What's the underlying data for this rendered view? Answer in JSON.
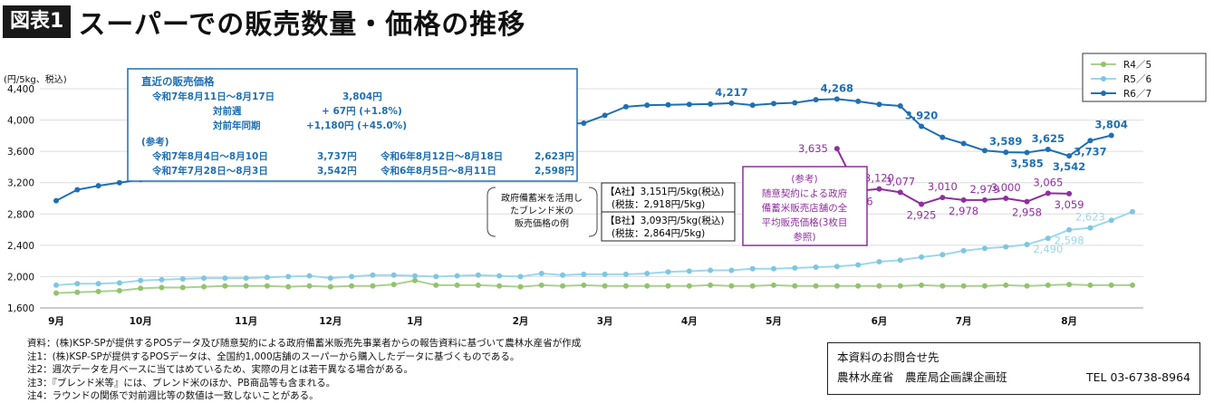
{
  "title": {
    "badge": "図表1",
    "text": "スーパーでの販売数量・価格の推移"
  },
  "chart_data": {
    "type": "line",
    "unit_label": "(円/5kg、税込)",
    "ylim": [
      1600,
      4400
    ],
    "yticks": [
      1600,
      2000,
      2400,
      2800,
      3200,
      3600,
      4000,
      4400
    ],
    "ytick_labels": [
      "1,600",
      "2,000",
      "2,400",
      "2,800",
      "3,200",
      "3,600",
      "4,000",
      "4,400"
    ],
    "x_count": 52,
    "x_month_labels": [
      {
        "label": "9月",
        "week": 0
      },
      {
        "label": "10月",
        "week": 4
      },
      {
        "label": "11月",
        "week": 9
      },
      {
        "label": "12月",
        "week": 13
      },
      {
        "label": "1月",
        "week": 17
      },
      {
        "label": "2月",
        "week": 22
      },
      {
        "label": "3月",
        "week": 26
      },
      {
        "label": "4月",
        "week": 30
      },
      {
        "label": "5月",
        "week": 34
      },
      {
        "label": "6月",
        "week": 39
      },
      {
        "label": "7月",
        "week": 43
      },
      {
        "label": "8月",
        "week": 48
      }
    ],
    "legend": {
      "position": "top-right",
      "entries": [
        "R4／5",
        "R5／6",
        "R6／7"
      ]
    },
    "series": [
      {
        "name": "R4／5",
        "color": "#a9d18e",
        "marker": "#92c36c",
        "values": [
          1790,
          1800,
          1810,
          1820,
          1850,
          1860,
          1860,
          1870,
          1880,
          1880,
          1880,
          1870,
          1880,
          1870,
          1880,
          1880,
          1900,
          1950,
          1890,
          1890,
          1890,
          1880,
          1870,
          1890,
          1880,
          1890,
          1880,
          1880,
          1880,
          1880,
          1880,
          1890,
          1880,
          1880,
          1890,
          1880,
          1880,
          1880,
          1880,
          1880,
          1880,
          1890,
          1880,
          1880,
          1880,
          1890,
          1880,
          1890,
          1900,
          1890,
          1890,
          1890
        ]
      },
      {
        "name": "R5／6",
        "color": "#9dd7ec",
        "marker": "#7ec6e2",
        "values": [
          1890,
          1910,
          1910,
          1920,
          1950,
          1960,
          1970,
          1980,
          1980,
          1980,
          1990,
          2000,
          2010,
          1980,
          2000,
          2020,
          2020,
          2010,
          2000,
          2010,
          2020,
          2010,
          2000,
          2040,
          2020,
          2030,
          2030,
          2030,
          2040,
          2060,
          2070,
          2080,
          2080,
          2100,
          2100,
          2110,
          2120,
          2130,
          2150,
          2190,
          2210,
          2250,
          2280,
          2330,
          2360,
          2380,
          2410,
          2490,
          2598,
          2623,
          2720,
          2830
        ]
      },
      {
        "name": "R6／7",
        "color": "#1f6fb3",
        "marker": "#1f6fb3",
        "values": [
          2970,
          3110,
          3160,
          3200,
          3240,
          3300,
          3350,
          3400,
          3450,
          3500,
          3550,
          3600,
          3650,
          3700,
          3750,
          3800,
          3830,
          3860,
          3880,
          3900,
          3910,
          3920,
          3930,
          3940,
          3950,
          3960,
          4060,
          4170,
          4190,
          4195,
          4200,
          4205,
          4217,
          4190,
          4210,
          4220,
          4260,
          4268,
          4240,
          4200,
          4180,
          3920,
          3780,
          3700,
          3610,
          3589,
          3585,
          3625,
          3542,
          3737,
          3804,
          null
        ]
      },
      {
        "name": "",
        "color": "#8e2f9e",
        "marker": "#8e2f9e",
        "start_index": 37,
        "values": [
          3635,
          3096,
          3120,
          3077,
          2925,
          3010,
          2978,
          2979,
          3000,
          2958,
          3065,
          3059
        ]
      }
    ],
    "data_labels": [
      {
        "series": 2,
        "index": 32,
        "text": "4,217",
        "pos": "above"
      },
      {
        "series": 2,
        "index": 37,
        "text": "4,268",
        "pos": "above"
      },
      {
        "series": 2,
        "index": 41,
        "text": "3,920",
        "pos": "above"
      },
      {
        "series": 2,
        "index": 45,
        "text": "3,589",
        "pos": "above"
      },
      {
        "series": 2,
        "index": 46,
        "text": "3,585",
        "pos": "below"
      },
      {
        "series": 2,
        "index": 47,
        "text": "3,625",
        "pos": "above"
      },
      {
        "series": 2,
        "index": 48,
        "text": "3,542",
        "pos": "below"
      },
      {
        "series": 2,
        "index": 49,
        "text": "3,737",
        "pos": "below"
      },
      {
        "series": 2,
        "index": 50,
        "text": "3,804",
        "pos": "above"
      },
      {
        "series": 3,
        "index": 0,
        "text": "3,635",
        "pos": "left"
      },
      {
        "series": 3,
        "index": 1,
        "text": "3,096",
        "pos": "below"
      },
      {
        "series": 3,
        "index": 2,
        "text": "3,120",
        "pos": "above"
      },
      {
        "series": 3,
        "index": 3,
        "text": "3,077",
        "pos": "above"
      },
      {
        "series": 3,
        "index": 4,
        "text": "2,925",
        "pos": "below"
      },
      {
        "series": 3,
        "index": 5,
        "text": "3,010",
        "pos": "above"
      },
      {
        "series": 3,
        "index": 6,
        "text": "2,978",
        "pos": "below"
      },
      {
        "series": 3,
        "index": 7,
        "text": "2,979",
        "pos": "above"
      },
      {
        "series": 3,
        "index": 8,
        "text": "3,000",
        "pos": "above"
      },
      {
        "series": 3,
        "index": 9,
        "text": "2,958",
        "pos": "below"
      },
      {
        "series": 3,
        "index": 10,
        "text": "3,065",
        "pos": "above"
      },
      {
        "series": 3,
        "index": 11,
        "text": "3,059",
        "pos": "below"
      },
      {
        "series": 1,
        "index": 47,
        "text": "2,490",
        "pos": "below"
      },
      {
        "series": 1,
        "index": 48,
        "text": "2,598",
        "pos": "below"
      },
      {
        "series": 1,
        "index": 49,
        "text": "2,623",
        "pos": "above"
      }
    ],
    "info_box": {
      "heading": "直近の販売価格",
      "period": "令和7年8月11日～8月17日",
      "price": "3,804円",
      "wow_label": "対前週",
      "wow_value": "+ 67円 (+1.8%)",
      "yoy_label": "対前年同期",
      "yoy_value": "+1,180円 (+45.0%)",
      "ref_label": "(参考)",
      "ref_rows": [
        {
          "p1": "令和7年8月4日～8月10日",
          "v1": "3,737円",
          "p2": "令和6年8月12日～8月18日",
          "v2": "2,623円"
        },
        {
          "p1": "令和7年7月28日～8月3日",
          "v1": "3,542円",
          "p2": "令和6年8月5日～8月11日",
          "v2": "2,598円"
        }
      ]
    },
    "blend_note": {
      "lines": [
        "政府備蓄米を活用し",
        "たブレンド米の",
        "販売価格の例"
      ]
    },
    "company_a": {
      "line1": "【A社】3,151円/5kg(税込)",
      "line2": "(税抜：2,918円/5kg)"
    },
    "company_b": {
      "line1": "【B社】3,093円/5kg(税込)",
      "line2": "(税抜：2,864円/5kg)"
    },
    "purple_box": {
      "lines": [
        "(参考)",
        "随意契約による政府",
        "備蓄米販売店舗の全",
        "平均販売価格(3枚目",
        "参照)"
      ]
    }
  },
  "notes": [
    "資料：(株)KSP-SPが提供するPOSデータ及び随意契約による政府備蓄米販売先事業者からの報告資料に基づいて農林水産省が作成",
    "注1：(株)KSP-SPが提供するPOSデータは、全国約1,000店舗のスーパーから購入したデータに基づくものである。",
    "注2：週次データを月ベースに当てはめているため、実際の月とは若干異なる場合がある。",
    "注3：『ブレンド米等』には、ブレンド米のほか、PB商品等も含まれる。",
    "注4：ラウンドの関係で対前週比等の数値は一致しないことがある。"
  ],
  "contact": {
    "heading": "本資料のお問合せ先",
    "org": "農林水産省　農産局企画課企画班",
    "tel": "TEL 03-6738-8964"
  }
}
